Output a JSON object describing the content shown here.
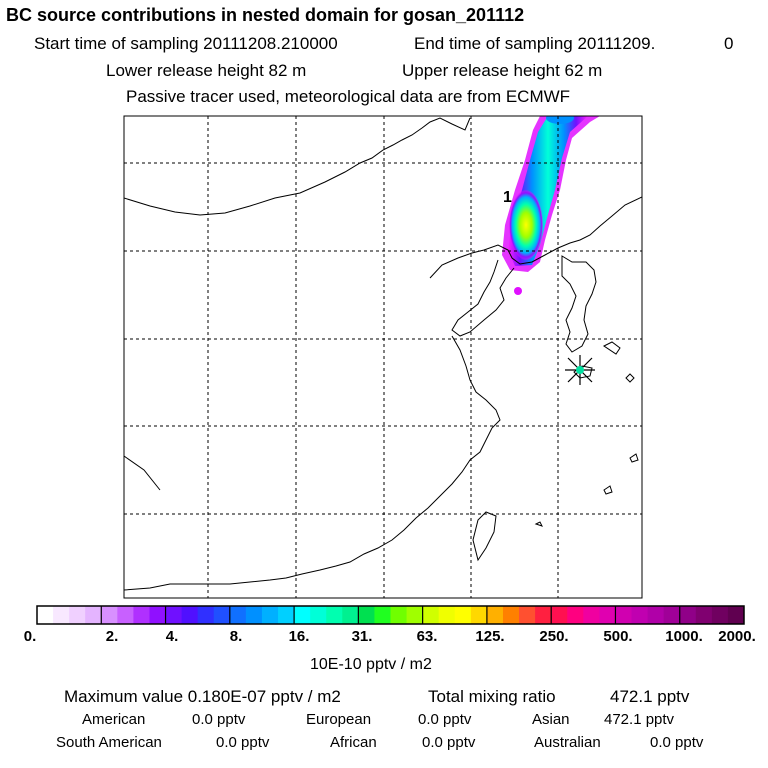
{
  "header": {
    "title": "BC  source contributions in nested domain for gosan_201112",
    "start_label": "Start time of sampling 20111208.210000",
    "end_label": "End time of sampling 20111209.",
    "end_suffix": "0",
    "lower_release": "Lower release height   82 m",
    "upper_release": "Upper release height   62 m",
    "tracer_note": "Passive tracer used, meteorological data are from ECMWF"
  },
  "map": {
    "plume_label": "1",
    "receptor_marker": "gosan-station",
    "coast_color": "#000000",
    "grid_color": "#000000"
  },
  "colorbar": {
    "ticks": [
      "0.",
      "2.",
      "4.",
      "8.",
      "16.",
      "31.",
      "63.",
      "125.",
      "250.",
      "500.",
      "1000.",
      "2000."
    ],
    "unit_label": "10E-10 pptv / m2",
    "colors": [
      "#ffffff",
      "#f8e8ff",
      "#f0d0ff",
      "#e4b4ff",
      "#d890ff",
      "#c860ff",
      "#b030ff",
      "#9010ff",
      "#7010ff",
      "#5010ff",
      "#3030ff",
      "#2050ff",
      "#1070ff",
      "#0090ff",
      "#00b0ff",
      "#00d0ff",
      "#00ffff",
      "#00ffd8",
      "#00ffb0",
      "#00f090",
      "#00e050",
      "#20ff20",
      "#70ff00",
      "#a0ff00",
      "#d0ff00",
      "#f0ff00",
      "#ffff00",
      "#ffd800",
      "#ffb000",
      "#ff8000",
      "#ff5030",
      "#ff2040",
      "#ff1050",
      "#ff0080",
      "#f000a0",
      "#e000b0",
      "#d000b0",
      "#c000b0",
      "#b000a8",
      "#a00098",
      "#900088",
      "#800070",
      "#700060",
      "#600050"
    ]
  },
  "stats": {
    "max_label": "Maximum value  0.180E-07 pptv / m2",
    "total_label": "Total mixing ratio",
    "total_value": "472.1 pptv",
    "american_label": "American",
    "american_value": "0.0 pptv",
    "european_label": "European",
    "european_value": "0.0 pptv",
    "asian_label": "Asian",
    "asian_value": "472.1 pptv",
    "south_american_label": "South American",
    "south_american_value": "0.0 pptv",
    "african_label": "African",
    "african_value": "0.0 pptv",
    "australian_label": "Australian",
    "australian_value": "0.0 pptv"
  }
}
